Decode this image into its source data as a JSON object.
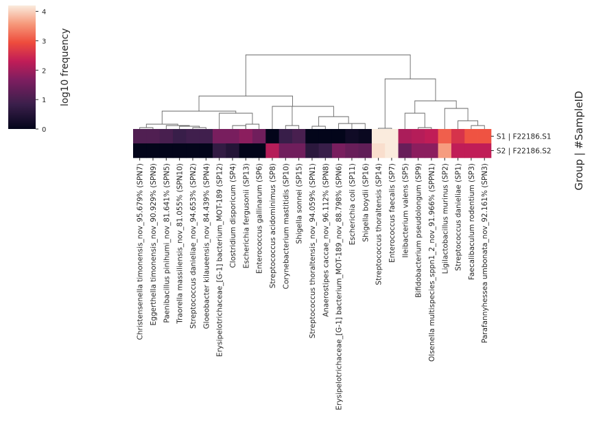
{
  "chart_data": {
    "type": "heatmap",
    "title": "",
    "colorbar": {
      "label": "log10 frequency",
      "ticks": [
        "0",
        "1",
        "2",
        "3",
        "4"
      ],
      "min": 0,
      "max": 4.2
    },
    "ylabel": "Group | #SampleID",
    "rows": [
      "S1 | F22186.S1",
      "S2 | F22186.S2"
    ],
    "columns": [
      "Christensenella timonensis_nov_95.679% (SPN7)",
      "Eggerthella timonensis_nov_90.929% (SPN9)",
      "Paenibacillus pinihumi_nov_81.641% (SPN5)",
      "Traorella massiliensis_nov_81.055% (SPN10)",
      "Streptococcus danieliae_nov_94.653% (SPN2)",
      "Gloeobacter kilaueensis_nov_84.439% (SPN4)",
      "Erysipelotrichaceae_[G-1] bacterium_MOT-189 (SP12)",
      "Clostridium disporicum (SP4)",
      "Escherichia fergusonii (SP13)",
      "Enterococcus gallinarum (SP6)",
      "Streptococcus acidominimus (SP8)",
      "Corynebacterium mastitidis (SP10)",
      "Shigella sonnei (SP15)",
      "Streptococcus thoraltensis_nov_94.059% (SPN1)",
      "Anaerostipes caccae_nov_96.112% (SPN8)",
      "Erysipelotrichaceae_[G-1] bacterium_MOT-189_nov_88.798% (SPN6)",
      "Escherichia coli (SP11)",
      "Shigella boydii (SP16)",
      "Streptococcus thoraltensis (SP14)",
      "Enterococcus faecalis (SP7)",
      "Ileibacterium valens (SP5)",
      "Bifidobacterium pseudolongum (SP9)",
      "Olsenella multispecies_sppn1_2_nov_91.966% (SPPN1)",
      "Ligilactobacillus murinus (SP2)",
      "Streptococcus danieliae (SP1)",
      "Faecalibaculum rodentium (SP3)",
      "Parafannyhessea umbonata_nov_92.161% (SPN3)"
    ],
    "values": [
      [
        1.1,
        1.1,
        1.0,
        0.8,
        0.9,
        0.9,
        1.6,
        1.6,
        1.8,
        1.5,
        0.0,
        0.8,
        1.0,
        0.0,
        0.0,
        0.0,
        0.2,
        0.1,
        4.2,
        4.2,
        2.1,
        2.2,
        2.3,
        3.1,
        2.6,
        3.0,
        3.0
      ],
      [
        0.0,
        0.0,
        0.0,
        0.0,
        0.0,
        0.0,
        0.7,
        0.5,
        0.0,
        0.0,
        2.2,
        1.5,
        1.5,
        0.6,
        0.8,
        1.6,
        1.4,
        1.3,
        4.1,
        4.2,
        1.4,
        1.8,
        1.8,
        3.6,
        2.3,
        2.3,
        2.3
      ]
    ]
  }
}
